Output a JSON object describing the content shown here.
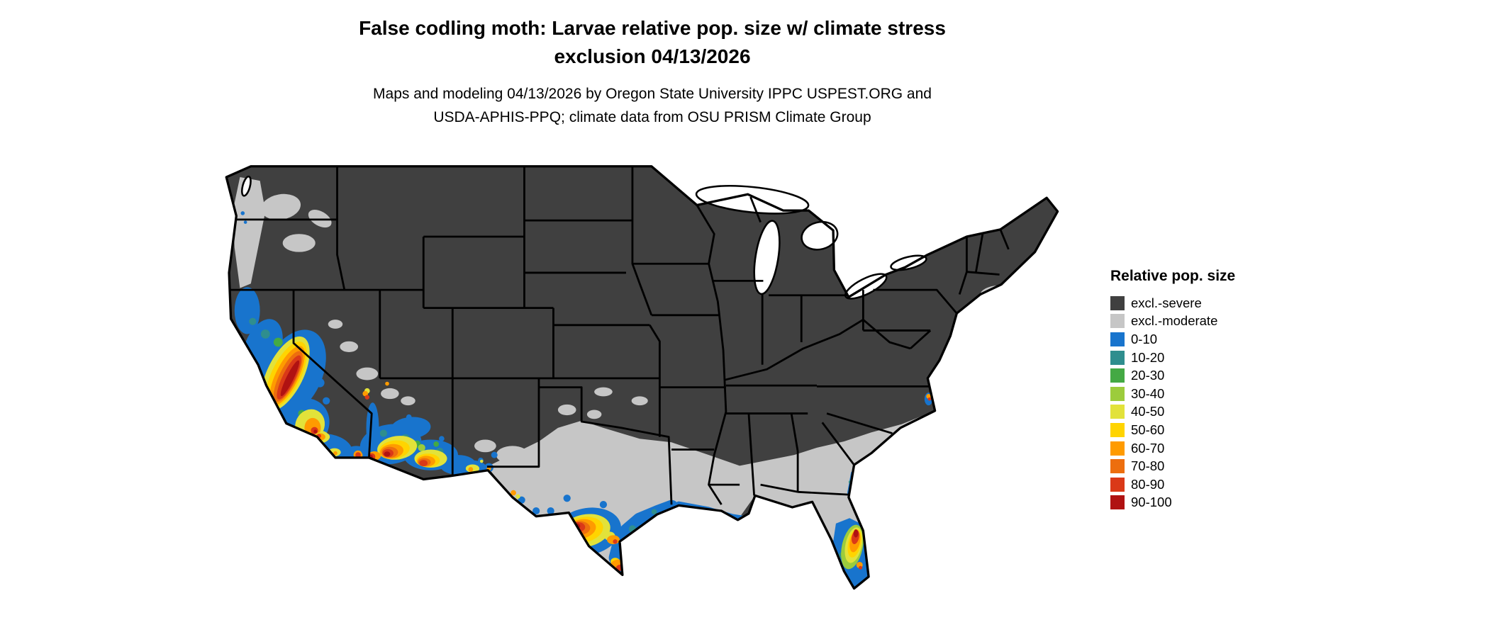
{
  "title": {
    "line1": "False codling moth: Larvae relative pop. size w/ climate stress",
    "line2": "exclusion 04/13/2026"
  },
  "subtitle": {
    "line1": "Maps and modeling 04/13/2026 by Oregon State University IPPC USPEST.ORG and",
    "line2": "USDA-APHIS-PPQ; climate data from OSU PRISM Climate Group"
  },
  "map": {
    "description": "Continental US raster map of false codling moth larvae relative population size with climate stress exclusion",
    "base_color": "#404040",
    "water_color": "#ffffff",
    "border_color": "#000000"
  },
  "legend": {
    "title": "Relative pop. size",
    "items": [
      {
        "label": "excl.-severe",
        "color": "#404040"
      },
      {
        "label": "excl.-moderate",
        "color": "#c6c6c6"
      },
      {
        "label": "0-10",
        "color": "#1874cd"
      },
      {
        "label": "10-20",
        "color": "#2f8e8e"
      },
      {
        "label": "20-30",
        "color": "#44a944"
      },
      {
        "label": "30-40",
        "color": "#9ccc3c"
      },
      {
        "label": "40-50",
        "color": "#e2e23a"
      },
      {
        "label": "50-60",
        "color": "#ffd400"
      },
      {
        "label": "60-70",
        "color": "#ff9b00"
      },
      {
        "label": "70-80",
        "color": "#ed6e0e"
      },
      {
        "label": "80-90",
        "color": "#da3918"
      },
      {
        "label": "90-100",
        "color": "#b01212"
      }
    ]
  }
}
